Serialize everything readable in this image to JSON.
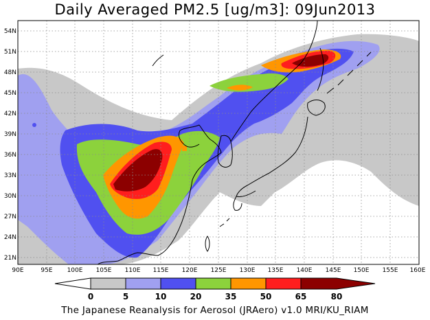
{
  "title": "Daily Averaged PM2.5 [ug/m3]: 09Jun2013",
  "footer": "The Japanese Reanalysis for Aerosol (JRAero) v1.0 MRI/KU_RIAM",
  "map": {
    "lon_ticks": [
      "90E",
      "95E",
      "100E",
      "105E",
      "110E",
      "115E",
      "120E",
      "125E",
      "130E",
      "135E",
      "140E",
      "145E",
      "150E",
      "155E",
      "160E"
    ],
    "lat_ticks": [
      "21N",
      "24N",
      "27N",
      "30N",
      "33N",
      "36N",
      "39N",
      "42N",
      "45N",
      "48N",
      "51N",
      "54N"
    ],
    "lon_range": [
      90,
      160
    ],
    "lat_range": [
      20,
      55.5
    ],
    "grid": true
  },
  "colorbar": {
    "levels": [
      "0",
      "5",
      "10",
      "20",
      "35",
      "50",
      "65",
      "80"
    ],
    "colors": [
      "#ffffff",
      "#c8c8c8",
      "#a0a0f0",
      "#5050f0",
      "#8cd23c",
      "#ff9600",
      "#ff1e1e",
      "#8c0000"
    ]
  }
}
